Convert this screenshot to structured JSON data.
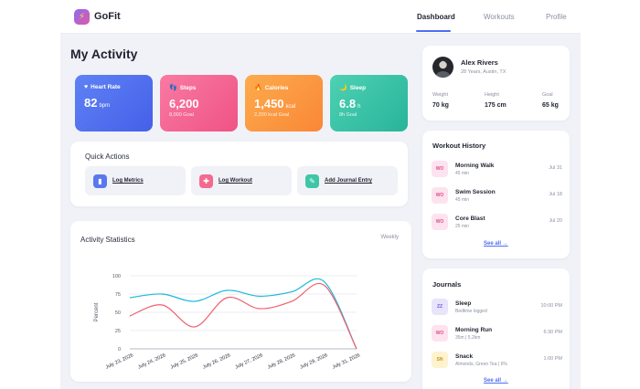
{
  "app": {
    "brand": "GoFit",
    "logo_icon": "bolt-icon",
    "nav": [
      "Dashboard",
      "Workouts",
      "Profile"
    ]
  },
  "page_title": "My Activity",
  "stats": [
    {
      "label": "Heart Rate",
      "icon": "heart-icon",
      "value": "82",
      "unit": "bpm",
      "sub": ""
    },
    {
      "label": "Steps",
      "icon": "steps-icon",
      "value": "6,200",
      "unit": "",
      "sub": "8,000 Goal"
    },
    {
      "label": "Calories",
      "icon": "flame-icon",
      "value": "1,450",
      "unit": "kcal",
      "sub": "2,200 kcal Goal"
    },
    {
      "label": "Sleep",
      "icon": "moon-icon",
      "value": "6.8",
      "unit": "h",
      "sub": "8h Goal"
    }
  ],
  "quick_actions": {
    "title": "Quick Actions",
    "items": [
      "Log Metrics",
      "Log Workout",
      "Add Journal Entry"
    ]
  },
  "chart_card": {
    "title": "Activity Statistics",
    "period": "Weekly"
  },
  "chart_data": {
    "type": "line",
    "title": "Activity Statistics",
    "xlabel": "",
    "ylabel": "Percent",
    "ylim": [
      0,
      100
    ],
    "yticks": [
      0,
      25,
      50,
      75,
      100
    ],
    "categories": [
      "July 23, 2026",
      "July 24, 2026",
      "July 25, 2026",
      "July 26, 2026",
      "July 27, 2026",
      "July 28, 2026",
      "July 29, 2026",
      "July 31, 2026"
    ],
    "series": [
      {
        "color": "#19b9d8",
        "values": [
          70,
          75,
          65,
          80,
          72,
          78,
          92,
          0
        ]
      },
      {
        "color": "#f0606e",
        "values": [
          45,
          60,
          30,
          70,
          55,
          65,
          87,
          0
        ]
      }
    ],
    "grid": true,
    "legend": "none"
  },
  "profile": {
    "name": "Alex Rivers",
    "sub": "28 Years, Austin, TX",
    "metrics": [
      {
        "label": "Weight",
        "value": "70 kg"
      },
      {
        "label": "Height",
        "value": "175 cm"
      },
      {
        "label": "Goal",
        "value": "65 kg"
      }
    ]
  },
  "workout_history": {
    "title": "Workout History",
    "items": [
      {
        "badge": "WO",
        "name": "Morning Walk",
        "sub": "45 min",
        "date": "Jul 31"
      },
      {
        "badge": "WO",
        "name": "Swim Session",
        "sub": "45 min",
        "date": "Jul 18"
      },
      {
        "badge": "WO",
        "name": "Core Blast",
        "sub": "25 min",
        "date": "Jul 20"
      }
    ],
    "see_all": "See all →"
  },
  "journals": {
    "title": "Journals",
    "items": [
      {
        "badge": "ZZ",
        "name": "Sleep",
        "sub": "Bedtime logged",
        "time": "10:00 PM"
      },
      {
        "badge": "WO",
        "name": "Morning Run",
        "sub": "35m | 5.2km",
        "time": "6:30 PM"
      },
      {
        "badge": "SN",
        "name": "Snack",
        "sub": "Almonds, Green Tea | 6%",
        "time": "1:00 PM"
      }
    ],
    "see_all": "See all →"
  },
  "colors": {
    "accent": "#4f6ef2",
    "heart": "#5a7cf4",
    "steps": "#f56a95",
    "calories": "#fb9a3f",
    "sleep": "#33c4a8"
  }
}
